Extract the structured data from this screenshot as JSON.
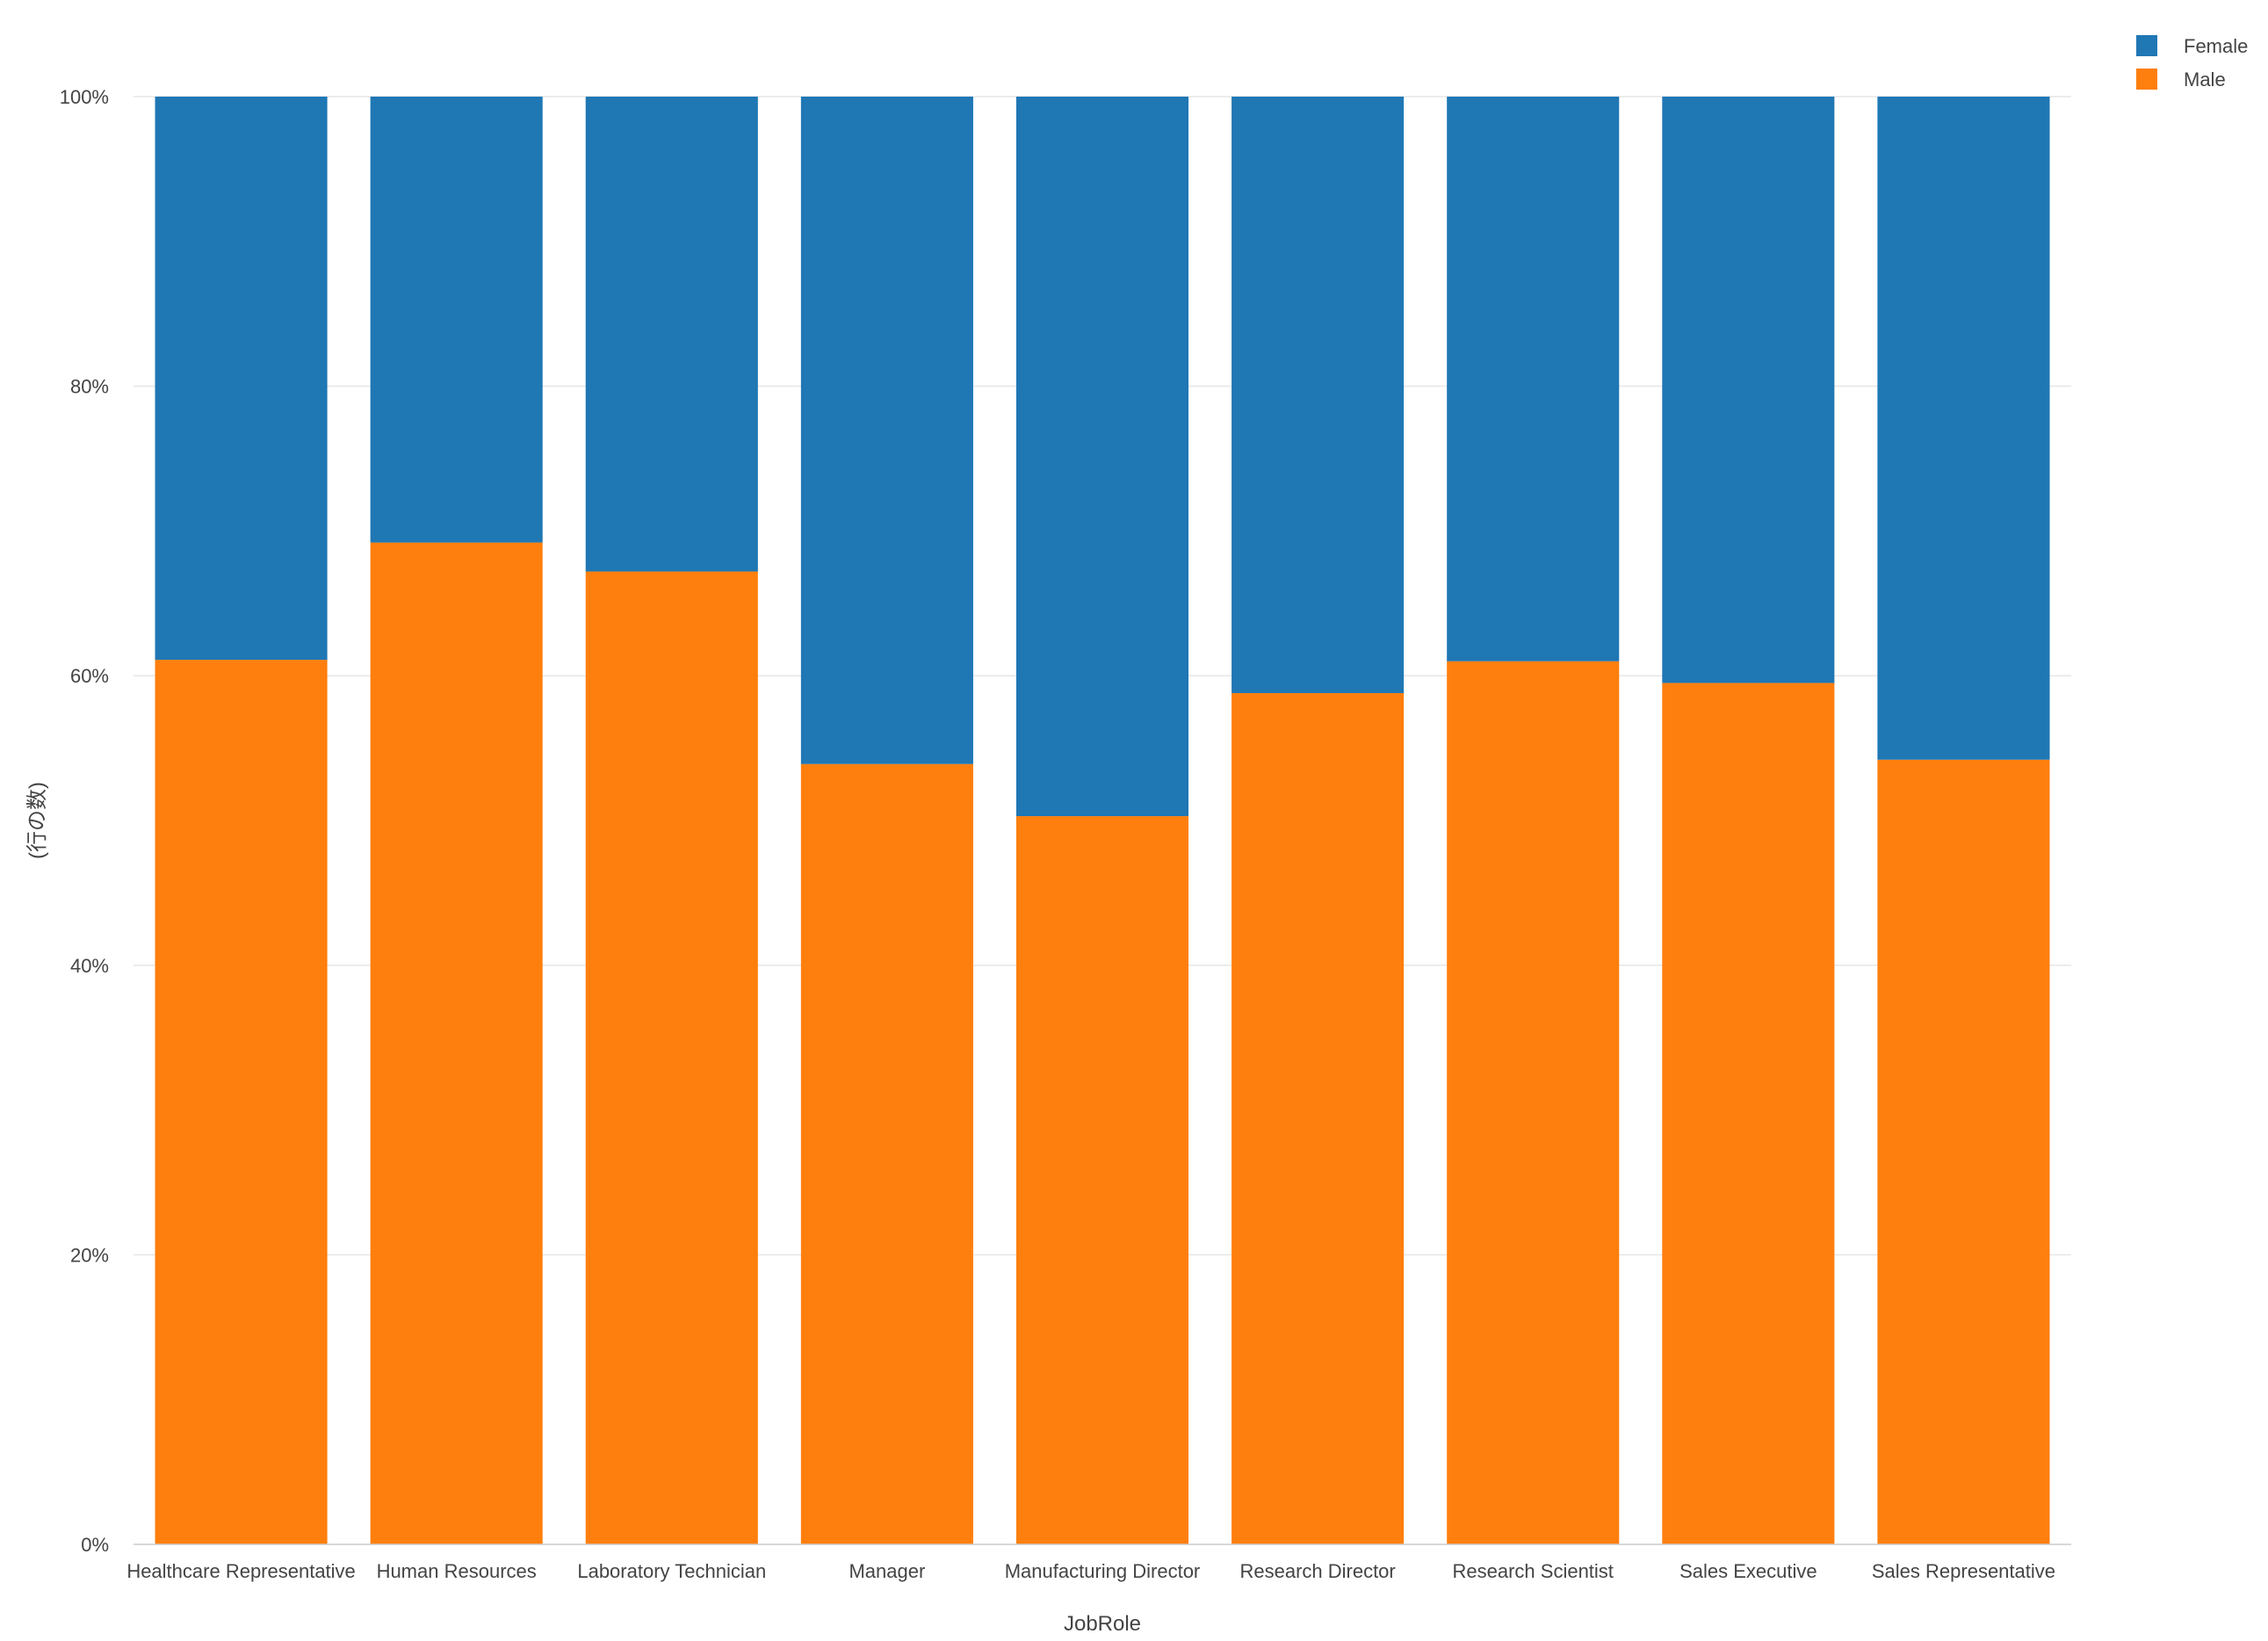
{
  "chart_data": {
    "type": "bar",
    "stacked": true,
    "normalized": true,
    "categories": [
      "Healthcare Representative",
      "Human Resources",
      "Laboratory Technician",
      "Manager",
      "Manufacturing Director",
      "Research Director",
      "Research Scientist",
      "Sales Executive",
      "Sales Representative"
    ],
    "series": [
      {
        "name": "Male",
        "color": "#ff7f0e",
        "values": [
          61.1,
          69.2,
          67.2,
          53.9,
          50.3,
          58.8,
          61.0,
          59.5,
          54.2
        ]
      },
      {
        "name": "Female",
        "color": "#1f77b4",
        "values": [
          38.9,
          30.8,
          32.8,
          46.1,
          49.7,
          41.2,
          39.0,
          40.5,
          45.8
        ]
      }
    ],
    "legend": {
      "position": "top-right",
      "order": [
        "Female",
        "Male"
      ]
    },
    "xlabel": "JobRole",
    "ylabel": "(行の数)",
    "ylim": [
      0,
      100
    ],
    "yticks": [
      0,
      20,
      40,
      60,
      80,
      100
    ],
    "ytick_labels": [
      "0%",
      "20%",
      "40%",
      "60%",
      "80%",
      "100%"
    ],
    "grid": true
  }
}
